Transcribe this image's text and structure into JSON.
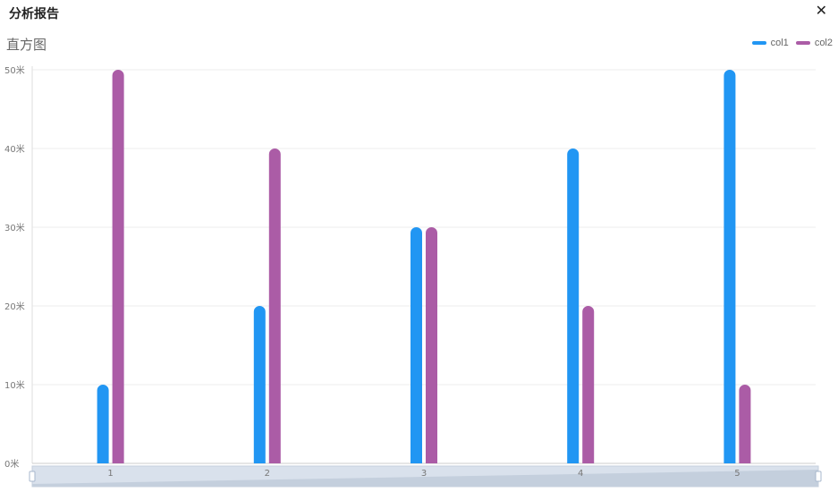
{
  "dialog": {
    "title": "分析报告",
    "close_label": "✕"
  },
  "chart_data": {
    "type": "bar",
    "title": "直方图",
    "categories": [
      "1",
      "2",
      "3",
      "4",
      "5"
    ],
    "series": [
      {
        "name": "col1",
        "color": "#2196f3",
        "values": [
          10,
          20,
          30,
          40,
          50
        ]
      },
      {
        "name": "col2",
        "color": "#ab5ca6",
        "values": [
          50,
          40,
          30,
          20,
          10
        ]
      }
    ],
    "ylim": [
      0,
      50
    ],
    "yticks": [
      0,
      10,
      20,
      30,
      40,
      50
    ],
    "ytick_unit": "米",
    "grid": true,
    "legend": "top-right",
    "datazoom": true
  }
}
